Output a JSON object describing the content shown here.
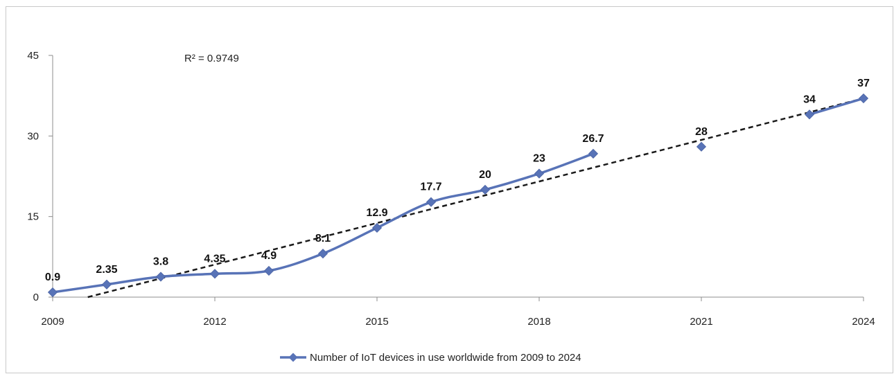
{
  "chart_data": {
    "type": "line",
    "x_ticks": [
      2009,
      2012,
      2015,
      2018,
      2021,
      2024
    ],
    "y_ticks": [
      0,
      15,
      30,
      45
    ],
    "xlim": [
      2009,
      2024
    ],
    "ylim": [
      0,
      45
    ],
    "grid": false,
    "legend_position": "bottom",
    "series": [
      {
        "name": "Number of IoT devices in use worldwide from 2009 to 2024",
        "color": "#5873B7",
        "marker": "diamond",
        "smooth": true,
        "points": [
          {
            "x": 2009,
            "y": 0.9,
            "label": "0.9"
          },
          {
            "x": 2010,
            "y": 2.35,
            "label": "2.35"
          },
          {
            "x": 2011,
            "y": 3.8,
            "label": "3.8"
          },
          {
            "x": 2012,
            "y": 4.35,
            "label": "4.35"
          },
          {
            "x": 2013,
            "y": 4.9,
            "label": "4.9"
          },
          {
            "x": 2014,
            "y": 8.1,
            "label": "8.1"
          },
          {
            "x": 2015,
            "y": 12.9,
            "label": "12.9"
          },
          {
            "x": 2016,
            "y": 17.7,
            "label": "17.7"
          },
          {
            "x": 2017,
            "y": 20,
            "label": "20"
          },
          {
            "x": 2018,
            "y": 23,
            "label": "23"
          },
          {
            "x": 2019,
            "y": 26.7,
            "label": "26.7"
          }
        ],
        "isolated_points": [
          {
            "x": 2021,
            "y": 28,
            "label": "28"
          }
        ],
        "tail_points": [
          {
            "x": 2023,
            "y": 34,
            "label": "34"
          },
          {
            "x": 2024,
            "y": 37,
            "label": "37"
          }
        ]
      }
    ],
    "trendline": {
      "type": "linear",
      "style": "dashed",
      "color": "#1a1a1a",
      "start": {
        "x": 2009.65,
        "y": 0
      },
      "end": {
        "x": 2024,
        "y": 37
      },
      "r_squared_label": "R² = 0.9749"
    }
  }
}
